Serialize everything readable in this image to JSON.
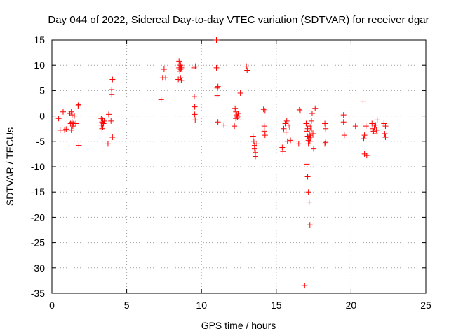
{
  "chart_data": {
    "type": "scatter",
    "title": "Day 044 of 2022, Sidereal Day-to-day VTEC variation (SDTVAR) for receiver dgar",
    "xlabel": "GPS time / hours",
    "ylabel": "SDTVAR / TECUs",
    "xlim": [
      0,
      25
    ],
    "ylim": [
      -35,
      15
    ],
    "xticks": [
      0,
      5,
      10,
      15,
      20,
      25
    ],
    "yticks": [
      -35,
      -30,
      -25,
      -20,
      -15,
      -10,
      -5,
      0,
      5,
      10,
      15
    ],
    "grid": true,
    "marker": "plus",
    "color": "#ff0000",
    "series": [
      {
        "name": "SDTVAR",
        "x": [
          0.45,
          0.55,
          0.75,
          0.85,
          0.95,
          1.2,
          1.25,
          1.3,
          1.3,
          1.35,
          1.35,
          1.4,
          1.45,
          1.5,
          1.6,
          1.75,
          1.78,
          1.8,
          3.3,
          3.3,
          3.35,
          3.35,
          3.4,
          3.4,
          3.45,
          3.5,
          3.75,
          3.8,
          3.95,
          4.0,
          4.0,
          4.05,
          4.05,
          7.3,
          7.4,
          7.5,
          7.6,
          8.45,
          8.5,
          8.5,
          8.55,
          8.55,
          8.6,
          8.6,
          8.6,
          8.65,
          8.65,
          8.7,
          9.5,
          9.5,
          9.52,
          9.55,
          9.55,
          9.58,
          9.6,
          11.0,
          11.0,
          11.05,
          11.05,
          11.1,
          11.1,
          11.5,
          12.2,
          12.25,
          12.3,
          12.3,
          12.35,
          12.4,
          12.45,
          12.5,
          12.6,
          13.0,
          13.05,
          13.45,
          13.5,
          13.55,
          13.55,
          13.6,
          13.6,
          13.7,
          14.15,
          14.2,
          14.2,
          14.25,
          14.25,
          15.4,
          15.45,
          15.5,
          15.6,
          15.65,
          15.7,
          15.75,
          15.8,
          15.9,
          15.95,
          16.5,
          16.55,
          16.6,
          16.9,
          17.0,
          17.05,
          17.1,
          17.1,
          17.15,
          17.15,
          17.2,
          17.2,
          17.25,
          17.25,
          17.3,
          17.3,
          17.35,
          17.35,
          17.4,
          17.45,
          17.5,
          17.6,
          17.05,
          17.1,
          17.15,
          17.2,
          17.25,
          18.25,
          18.25,
          18.3,
          18.3,
          19.5,
          19.5,
          19.55,
          20.3,
          20.8,
          20.85,
          20.9,
          20.9,
          21.0,
          21.05,
          21.4,
          21.45,
          21.5,
          21.55,
          21.6,
          21.65,
          21.7,
          21.75,
          22.2,
          22.25,
          22.3,
          22.3
        ],
        "y": [
          -0.5,
          -2.8,
          0.8,
          -2.8,
          -2.6,
          0.5,
          -1.5,
          0.8,
          -2.8,
          -1.2,
          0.2,
          -2.0,
          -1.5,
          0.0,
          -1.5,
          2.0,
          2.2,
          -5.8,
          -0.5,
          -1.8,
          -2.5,
          -1.2,
          -0.8,
          -2.2,
          -1.5,
          -1.0,
          -5.5,
          0.3,
          -1.0,
          4.2,
          5.2,
          7.2,
          -4.2,
          3.2,
          7.5,
          9.2,
          7.5,
          7.2,
          10.8,
          9.5,
          10.2,
          8.8,
          7.5,
          10.0,
          9.2,
          9.5,
          7.0,
          9.8,
          9.5,
          9.8,
          3.8,
          1.8,
          0.3,
          -0.8,
          9.8,
          15.0,
          9.5,
          5.5,
          4.0,
          -1.2,
          5.8,
          -1.8,
          -2.0,
          1.5,
          0.8,
          -0.5,
          0.2,
          -0.2,
          0.5,
          -0.8,
          4.5,
          9.8,
          9.0,
          -4.0,
          -5.0,
          -5.8,
          -6.5,
          -7.2,
          -8.0,
          -5.5,
          1.3,
          -2.0,
          -3.0,
          -3.8,
          1.0,
          -6.2,
          -7.0,
          -2.5,
          -1.5,
          -3.2,
          -1.0,
          -5.0,
          -1.8,
          -2.2,
          -4.8,
          -5.5,
          1.2,
          1.0,
          -33.5,
          -1.5,
          -3.0,
          -2.5,
          -4.0,
          -4.8,
          -5.5,
          -2.0,
          -4.5,
          -3.8,
          -5.0,
          -2.2,
          -4.2,
          -1.0,
          -2.8,
          0.5,
          -3.5,
          -6.5,
          1.5,
          -9.5,
          -12.0,
          -15.0,
          -17.0,
          -21.5,
          -1.5,
          -5.5,
          -2.5,
          -5.2,
          0.2,
          -1.2,
          -3.8,
          -2.0,
          2.8,
          -4.5,
          -7.5,
          -3.8,
          -2.0,
          -7.8,
          -1.5,
          -2.5,
          -3.0,
          -2.2,
          -3.5,
          -1.8,
          -2.8,
          -0.8,
          -1.5,
          -3.5,
          -4.2,
          -2.0
        ]
      }
    ]
  }
}
